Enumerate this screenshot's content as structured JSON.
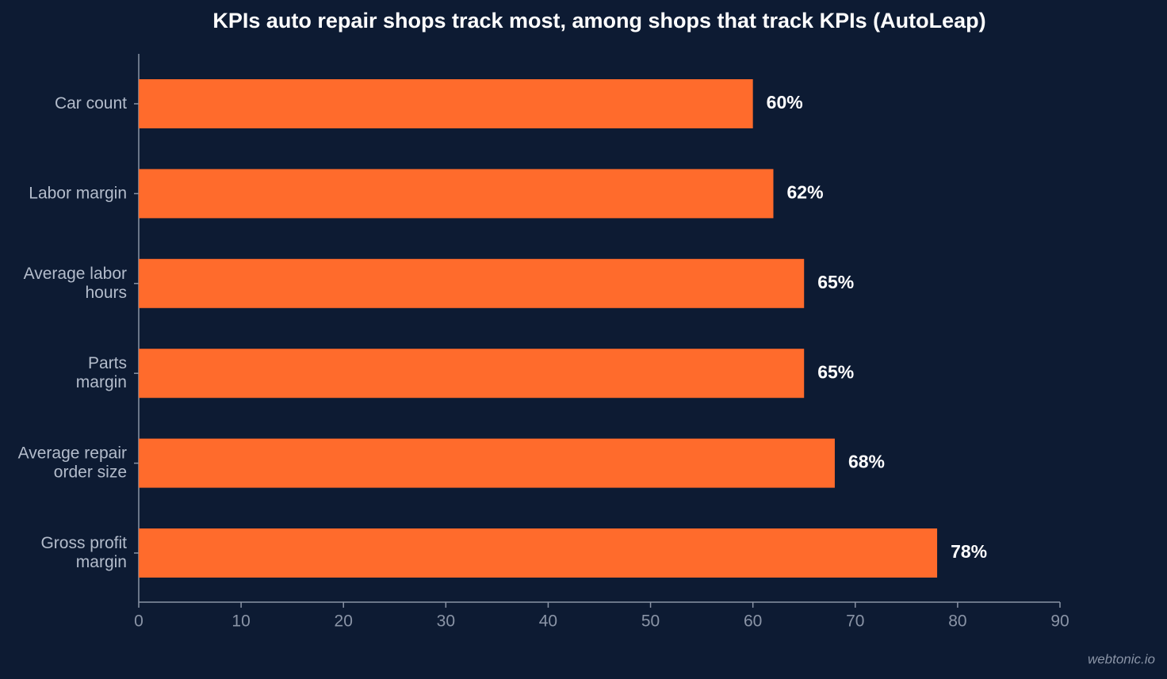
{
  "chart_data": {
    "type": "hbar",
    "title": "KPIs auto repair shops track most, among shops that track KPIs (AutoLeap)",
    "categories": [
      [
        "Car count"
      ],
      [
        "Labor margin"
      ],
      [
        "Average labor",
        "hours"
      ],
      [
        "Parts",
        "margin"
      ],
      [
        "Average repair",
        "order size"
      ],
      [
        "Gross profit",
        "margin"
      ]
    ],
    "values": [
      60,
      62,
      65,
      65,
      68,
      78
    ],
    "value_labels": [
      "60%",
      "62%",
      "65%",
      "65%",
      "68%",
      "78%"
    ],
    "color": "#ff6b2c",
    "xlim": [
      0,
      90
    ],
    "xticks": [
      0,
      10,
      20,
      30,
      40,
      50,
      60,
      70,
      80,
      90
    ],
    "watermark": "webtonic.io"
  }
}
